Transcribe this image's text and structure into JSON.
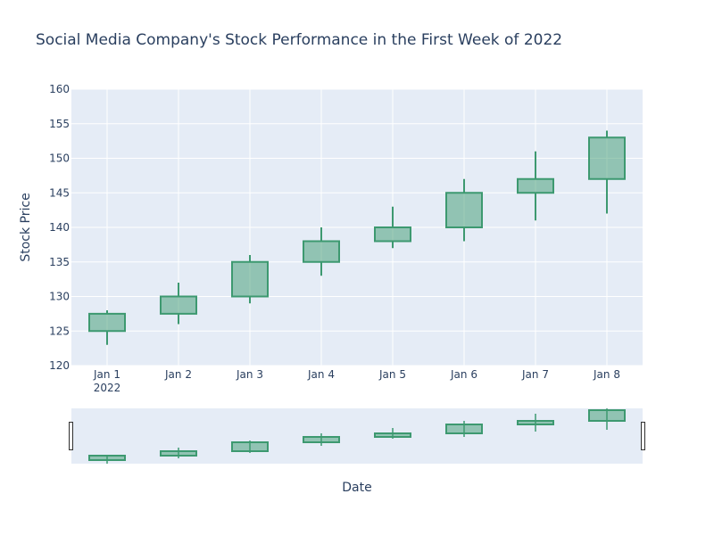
{
  "chart_data": {
    "type": "candlestick",
    "title": "Social Media Company's Stock Performance in the First Week of 2022",
    "xlabel": "Date",
    "ylabel": "Stock Price",
    "ylim": [
      120,
      160
    ],
    "yticks": [
      120,
      125,
      130,
      135,
      140,
      145,
      150,
      155,
      160
    ],
    "year_label": "2022",
    "categories": [
      "Jan 1",
      "Jan 2",
      "Jan 3",
      "Jan 4",
      "Jan 5",
      "Jan 6",
      "Jan 7",
      "Jan 8"
    ],
    "open": [
      125,
      127.5,
      130,
      135,
      138,
      140,
      145,
      147
    ],
    "high": [
      128,
      132,
      136,
      140,
      143,
      147,
      151,
      154
    ],
    "low": [
      123,
      126,
      129,
      133,
      137,
      138,
      141,
      142
    ],
    "close": [
      127.5,
      130,
      135,
      138,
      140,
      145,
      147,
      153
    ],
    "rangeslider": true,
    "colors": {
      "increasing_line": "#3d9970",
      "increasing_fill": "rgba(61,153,112,0.5)",
      "plot_bg": "#e5ecf6",
      "grid": "#ffffff",
      "text": "#2a3f5f"
    }
  }
}
